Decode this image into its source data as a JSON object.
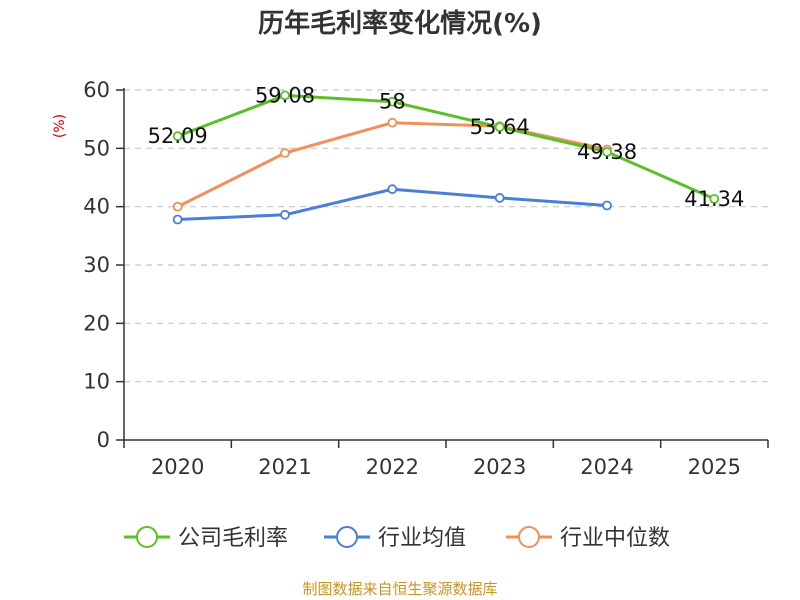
{
  "chart_data": {
    "type": "line",
    "title": "历年毛利率变化情况(%)",
    "ylabel": "(%)",
    "xlabel": "",
    "categories": [
      "2020",
      "2021",
      "2022",
      "2023",
      "2024",
      "2025"
    ],
    "ylim": [
      0,
      60
    ],
    "yticks": [
      0,
      10,
      20,
      30,
      40,
      50,
      60
    ],
    "grid": true,
    "legend_position": "bottom",
    "series": [
      {
        "name": "公司毛利率",
        "color": "#5cbf2a",
        "values": [
          52.09,
          59.08,
          58,
          53.64,
          49.38,
          41.34
        ],
        "labels": [
          "52.09",
          "59.08",
          "58",
          "53.64",
          "49.38",
          "41.34"
        ]
      },
      {
        "name": "行业均值",
        "color": "#4a7fd8",
        "values": [
          37.8,
          38.6,
          43.0,
          41.5,
          40.2,
          null
        ]
      },
      {
        "name": "行业中位数",
        "color": "#f0905a",
        "values": [
          40.0,
          49.2,
          54.4,
          53.8,
          49.8,
          null
        ]
      }
    ],
    "source": "制图数据来自恒生聚源数据库"
  }
}
